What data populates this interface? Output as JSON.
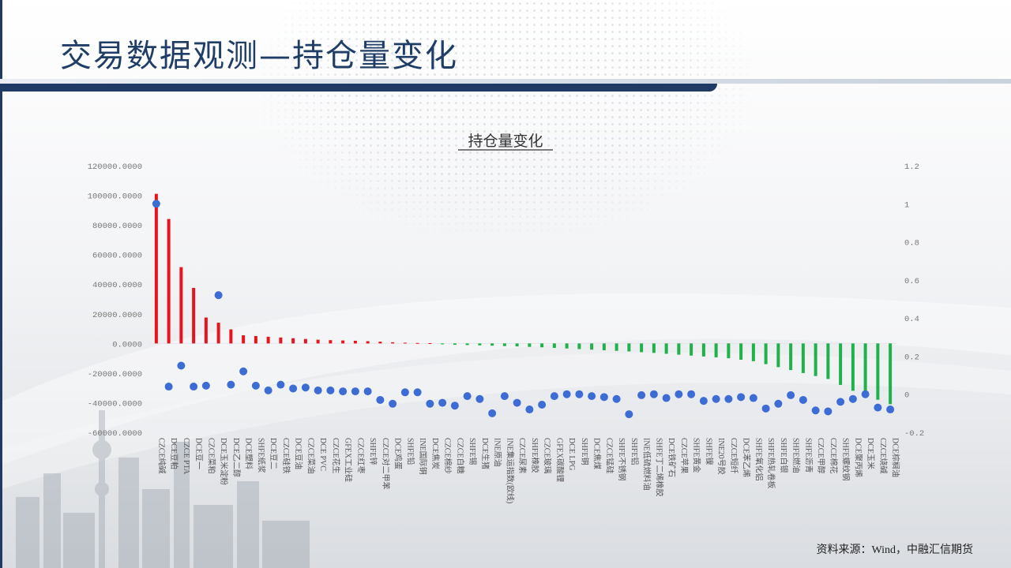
{
  "slide": {
    "title": "交易数据观测—持仓量变化",
    "source_note": "资料来源：Wind，中融汇信期货"
  },
  "colors": {
    "positive_bar": "#e8141c",
    "negative_bar": "#20b04c",
    "dot": "#3d6dd4",
    "title_blue": "#1f3d66",
    "band_dark": "#1f3a64"
  },
  "chart_data": {
    "type": "bar",
    "title": "持仓量变化",
    "categories": [
      "CZCE纯碱",
      "DCE豆粕",
      "CZCE PTA",
      "DCE豆一",
      "CZCE菜粕",
      "DCE玉米淀粉",
      "DCE乙二醇",
      "DCE塑料",
      "SHFE纸浆",
      "DCE豆二",
      "CZCE硅铁",
      "DCE豆油",
      "CZCE菜油",
      "DCE PVC",
      "CZCE花生",
      "GFEX工业硅",
      "CZCE红枣",
      "SHFE锌",
      "CZCE对二甲苯",
      "DCE鸡蛋",
      "SHFE铅",
      "INE国际铜",
      "DCE焦炭",
      "CZCE棉纱",
      "CZCE白糖",
      "SHFE锡",
      "DCE生猪",
      "INE原油",
      "INE集运指数(欧线)",
      "CZCE尿素",
      "SHFE橡胶",
      "CZCE玻璃",
      "GFEX碳酸锂",
      "DCE LPG",
      "SHFE铜",
      "DCE焦煤",
      "CZCE锰硅",
      "SHFE不锈钢",
      "SHFE铝",
      "INE低硫燃料油",
      "SHFE丁二烯橡胶",
      "DCE铁矿石",
      "CZCE苹果",
      "SHFE黄金",
      "SHFE镍",
      "INE20号胶",
      "CZCE短纤",
      "DCE苯乙烯",
      "SHFE氧化铝",
      "SHFE热轧卷板",
      "SHFE白银",
      "SHFE燃油",
      "SHFE沥青",
      "CZCE甲醇",
      "CZCE棉花",
      "SHFE螺纹钢",
      "DCE聚丙烯",
      "DCE玉米",
      "CZCE烧碱",
      "DCE棕榈油"
    ],
    "series": [
      {
        "axis": "left",
        "values": [
          101000,
          84000,
          51500,
          37500,
          17500,
          14000,
          9500,
          5500,
          5000,
          4500,
          4000,
          3500,
          3000,
          2500,
          2200,
          2000,
          1800,
          1500,
          1200,
          800,
          500,
          300,
          200,
          -600,
          -900,
          -1100,
          -1300,
          -1500,
          -1800,
          -2000,
          -2300,
          -2600,
          -3000,
          -3400,
          -3800,
          -4200,
          -4600,
          -5000,
          -5400,
          -5900,
          -6400,
          -7000,
          -7600,
          -8200,
          -8800,
          -9400,
          -10000,
          -11000,
          -12000,
          -14000,
          -16000,
          -18000,
          -20000,
          -22000,
          -24000,
          -28000,
          -32000,
          -35000,
          -38000,
          -41000
        ]
      },
      {
        "axis": "right",
        "values": [
          1.0,
          0.04,
          0.15,
          0.04,
          0.045,
          0.52,
          0.05,
          0.12,
          0.045,
          0.02,
          0.05,
          0.03,
          0.035,
          0.02,
          0.02,
          0.015,
          0.015,
          0.015,
          -0.03,
          -0.05,
          0.01,
          0.01,
          -0.05,
          -0.045,
          -0.06,
          -0.01,
          -0.025,
          -0.1,
          -0.01,
          -0.045,
          -0.08,
          -0.055,
          -0.01,
          0.0,
          0.0,
          -0.01,
          -0.015,
          -0.025,
          -0.105,
          -0.005,
          0.0,
          -0.02,
          0.0,
          0.0,
          -0.035,
          -0.025,
          -0.025,
          -0.015,
          -0.02,
          -0.075,
          -0.05,
          -0.005,
          -0.03,
          -0.085,
          -0.09,
          -0.04,
          -0.025,
          -0.0,
          -0.07,
          -0.08
        ]
      }
    ],
    "left_axis": {
      "ylim": [
        -60000,
        120000
      ],
      "ticks": [
        "120000.0000",
        "100000.0000",
        "80000.0000",
        "60000.0000",
        "40000.0000",
        "20000.0000",
        "0.0000",
        "-20000.0000",
        "-40000.0000",
        "-60000.0000"
      ]
    },
    "right_axis": {
      "ylim": [
        -0.2,
        1.2
      ],
      "ticks": [
        "1.2",
        "1",
        "0.8",
        "0.6",
        "0.4",
        "0.2",
        "0",
        "-0.2"
      ]
    },
    "grid": false,
    "legend": "none"
  }
}
